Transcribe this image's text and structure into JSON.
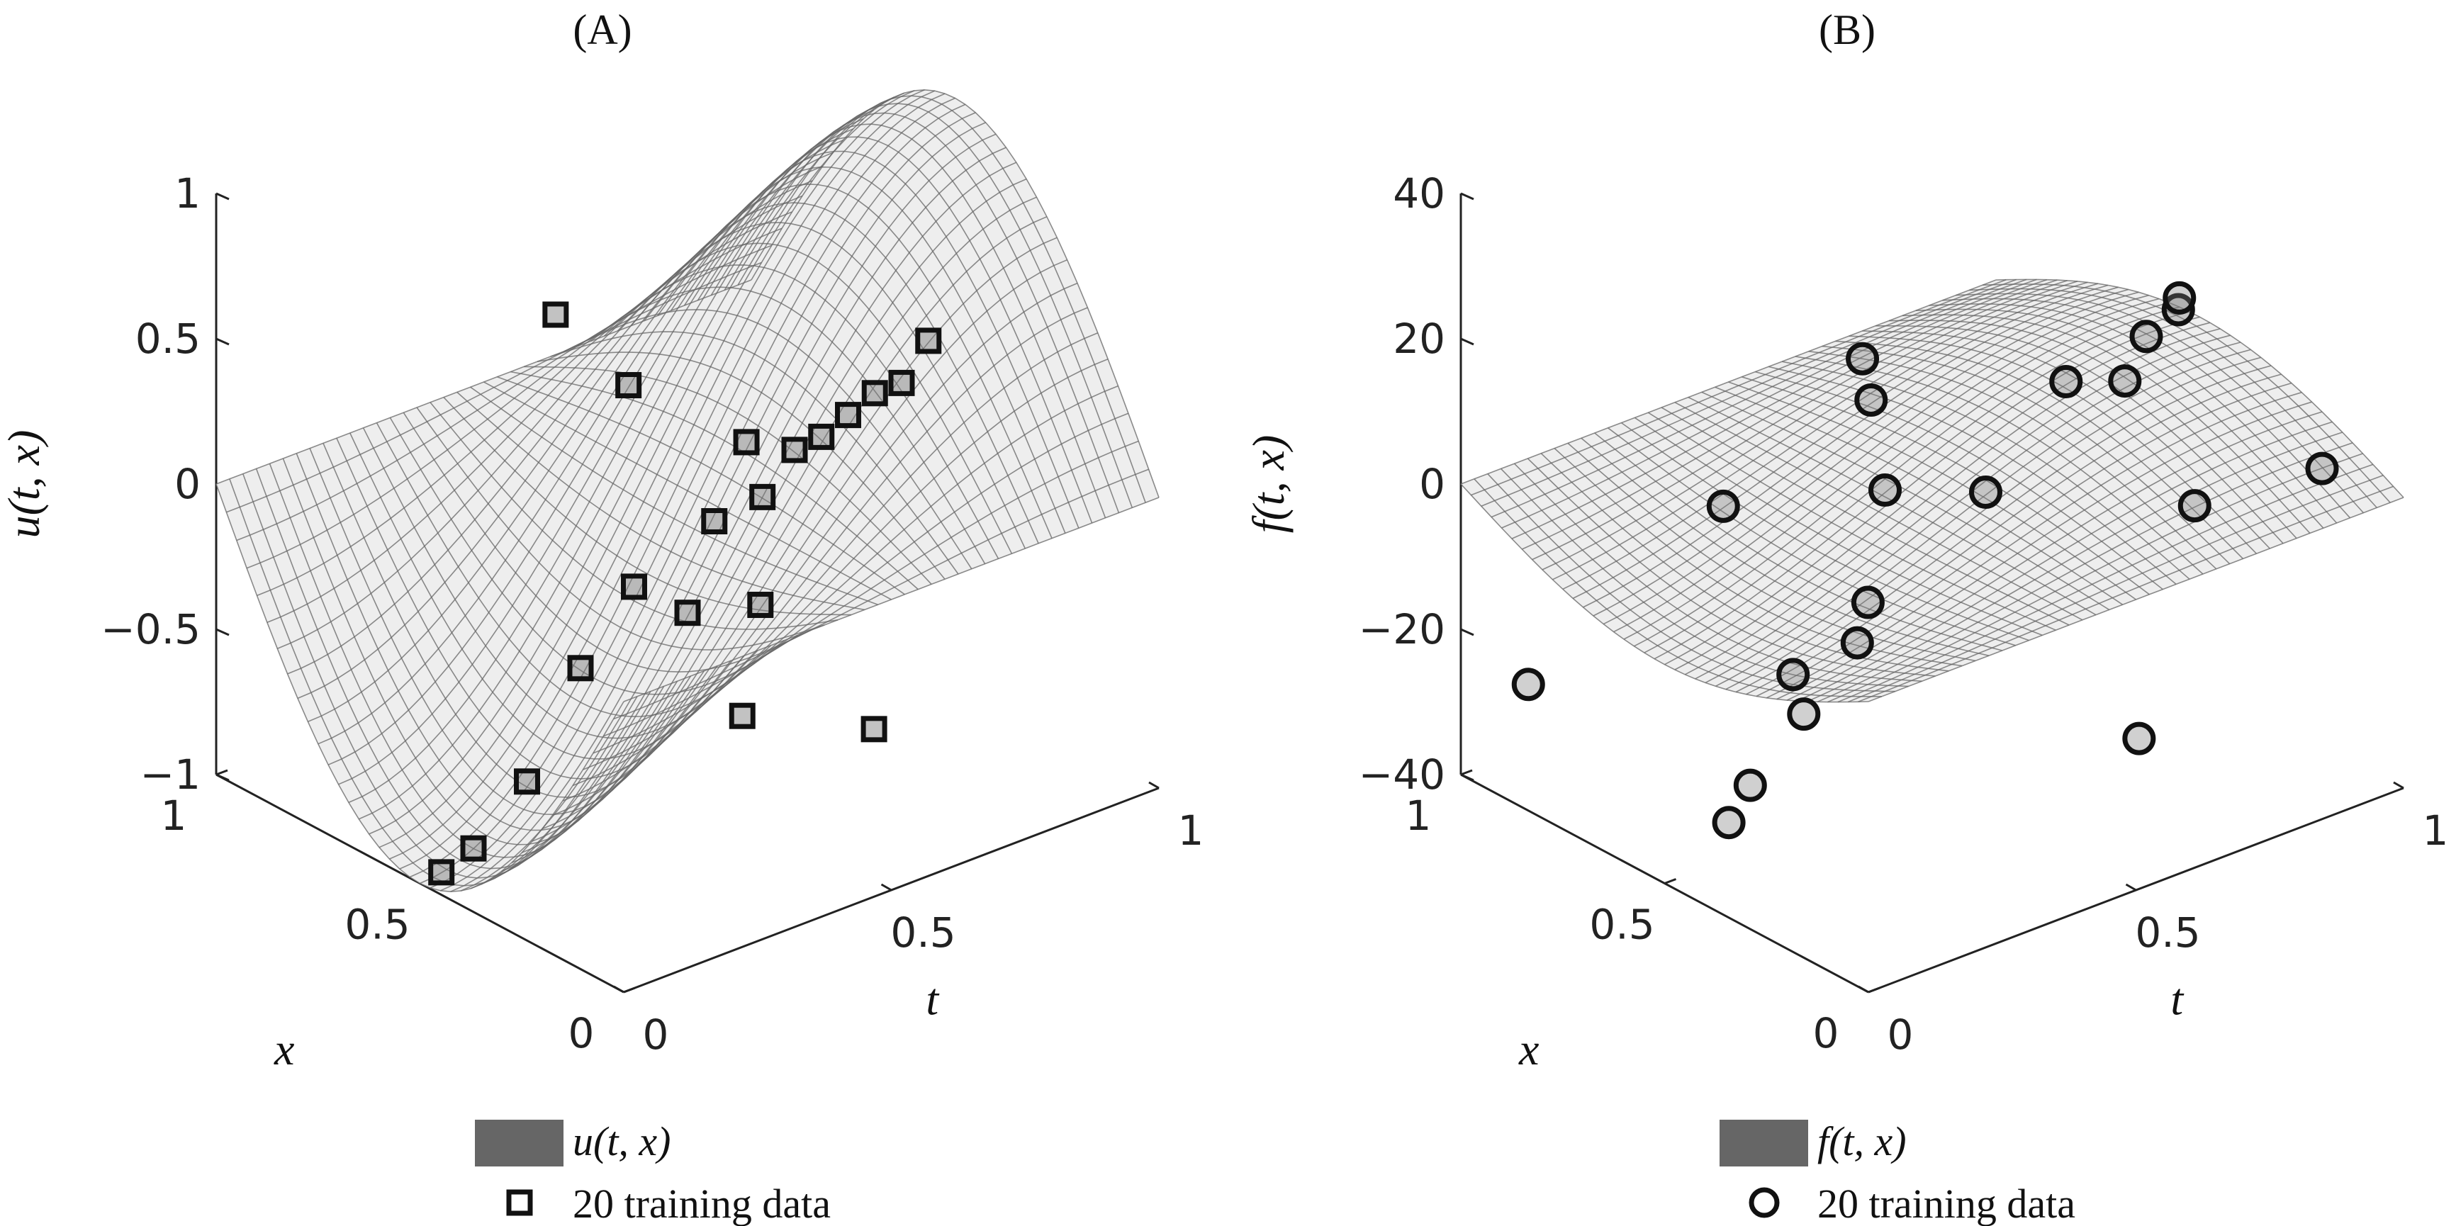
{
  "chart_data": [
    {
      "type": "surface3d",
      "panel_title": "(A)",
      "surface": "u(t,x) = -sin(pi x) * cos(pi t)",
      "xlabel": "t",
      "ylabel": "x",
      "zlabel": "u(t, x)",
      "xlim": [
        0,
        1
      ],
      "ylim": [
        0,
        1
      ],
      "zlim": [
        -1,
        1
      ],
      "x_ticks": [
        0,
        0.5,
        1
      ],
      "x_tick_labels": [
        "0",
        "0.5",
        "1"
      ],
      "y_ticks": [
        0,
        0.5,
        1
      ],
      "y_tick_labels": [
        "0",
        "0.5",
        "1"
      ],
      "z_ticks": [
        -1,
        -0.5,
        0,
        0.5,
        1
      ],
      "z_tick_labels": [
        "−1",
        "−0.5",
        "0",
        "0.5",
        "1"
      ],
      "legend": [
        {
          "label": "u(t, x)",
          "marker": "surface"
        },
        {
          "label": "20 training data",
          "marker": "square"
        }
      ],
      "training_data": [
        {
          "t": 0.04,
          "x": 0.5,
          "value": -0.99
        },
        {
          "t": 0.1,
          "x": 0.5,
          "value": -0.95
        },
        {
          "t": 0.2,
          "x": 0.5,
          "value": -0.79
        },
        {
          "t": 0.3,
          "x": 0.5,
          "value": -0.47
        },
        {
          "t": 0.5,
          "x": 0.5,
          "value": -0.42
        },
        {
          "t": 0.55,
          "x": 0.5,
          "value": -0.14
        },
        {
          "t": 0.64,
          "x": 0.5,
          "value": -0.12
        },
        {
          "t": 0.75,
          "x": 0.5,
          "value": 0.01
        },
        {
          "t": 0.85,
          "x": 0.5,
          "value": 0.09
        },
        {
          "t": 0.95,
          "x": 0.5,
          "value": 0.2
        },
        {
          "t": 0.4,
          "x": 0.5,
          "value": -0.26
        },
        {
          "t": 0.61,
          "x": 0.5,
          "value": 0.09
        },
        {
          "t": 0.7,
          "x": 0.5,
          "value": 0.0
        },
        {
          "t": 0.8,
          "x": 0.5,
          "value": 0.05
        },
        {
          "t": 0.9,
          "x": 0.5,
          "value": 0.09
        },
        {
          "t": 0.52,
          "x": 0.85,
          "value": 0.33
        },
        {
          "t": 0.58,
          "x": 0.75,
          "value": 0.12
        },
        {
          "t": 0.62,
          "x": 0.2,
          "value": -0.68
        },
        {
          "t": 0.56,
          "x": 0.4,
          "value": -0.36
        },
        {
          "t": 0.45,
          "x": 0.3,
          "value": -0.59
        }
      ]
    },
    {
      "type": "surface3d",
      "panel_title": "(B)",
      "surface": "f(t,x) = pi sin(pi x) sin(pi t) - pi^2 sin(pi x) cos(pi t)",
      "xlabel": "t",
      "ylabel": "x",
      "zlabel": "f(t, x)",
      "xlim": [
        0,
        1
      ],
      "ylim": [
        0,
        1
      ],
      "zlim": [
        -40,
        40
      ],
      "x_ticks": [
        0,
        0.5,
        1
      ],
      "x_tick_labels": [
        "0",
        "0.5",
        "1"
      ],
      "y_ticks": [
        0,
        0.5,
        1
      ],
      "y_tick_labels": [
        "0",
        "0.5",
        "1"
      ],
      "z_ticks": [
        -40,
        -20,
        0,
        20,
        40
      ],
      "z_tick_labels": [
        "−40",
        "−20",
        "0",
        "20",
        "40"
      ],
      "legend": [
        {
          "label": "f(t, x)",
          "marker": "surface"
        },
        {
          "label": "20 training data",
          "marker": "circle"
        }
      ],
      "training_data": [
        {
          "t": 0.05,
          "x": 0.9,
          "value": -26
        },
        {
          "t": 0.12,
          "x": 0.5,
          "value": -35
        },
        {
          "t": 0.16,
          "x": 0.5,
          "value": -31
        },
        {
          "t": 0.26,
          "x": 0.5,
          "value": -24
        },
        {
          "t": 0.24,
          "x": 0.5,
          "value": -18
        },
        {
          "t": 0.36,
          "x": 0.5,
          "value": -17
        },
        {
          "t": 0.38,
          "x": 0.5,
          "value": -12
        },
        {
          "t": 0.6,
          "x": 0.5,
          "value": -3
        },
        {
          "t": 0.3,
          "x": 0.75,
          "value": -4
        },
        {
          "t": 0.45,
          "x": 0.55,
          "value": 0
        },
        {
          "t": 0.5,
          "x": 0.65,
          "value": 8
        },
        {
          "t": 0.56,
          "x": 0.75,
          "value": 9
        },
        {
          "t": 0.75,
          "x": 0.5,
          "value": 8
        },
        {
          "t": 0.86,
          "x": 0.5,
          "value": 5
        },
        {
          "t": 0.9,
          "x": 0.5,
          "value": 10
        },
        {
          "t": 0.96,
          "x": 0.5,
          "value": 12
        },
        {
          "t": 0.8,
          "x": 0.25,
          "value": -3
        },
        {
          "t": 0.62,
          "x": 0.15,
          "value": -27
        },
        {
          "t": 1.0,
          "x": 0.55,
          "value": 11
        },
        {
          "t": 1.0,
          "x": 0.2,
          "value": -2
        }
      ]
    }
  ]
}
